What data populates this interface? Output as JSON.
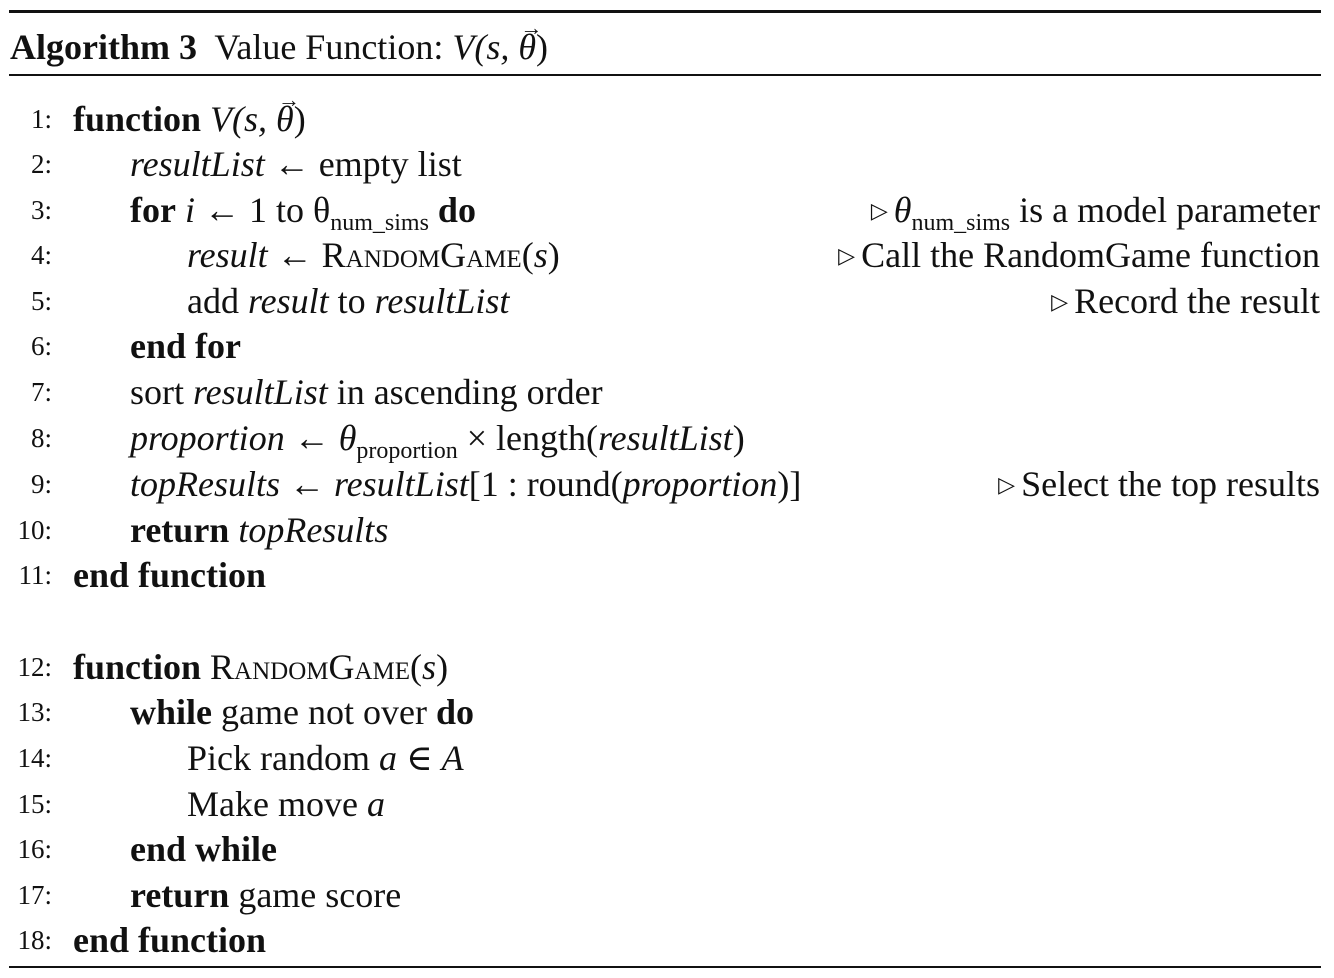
{
  "caption": {
    "label": "Algorithm 3",
    "title": "Value Function:",
    "sig_pre": "V",
    "sig_args": "(s, ",
    "sig_theta": "θ",
    "sig_close": ")"
  },
  "lines": [
    {
      "n": "1:",
      "kw": "function",
      "sig_v": "V",
      "sig_args": "(s, ",
      "sig_theta": "θ",
      "sig_close": ")"
    },
    {
      "n": "2:",
      "var": "resultList",
      "arrow": " ← ",
      "rest": "empty list"
    },
    {
      "n": "3:",
      "kw_for": "for",
      "var": " i",
      "arrow": " ← ",
      "mid": "1 to θ",
      "sub": "num_sims",
      "kw_do": " do",
      "comment_pre": "θ",
      "comment_sub": "num_sims",
      "comment_rest": " is a model parameter"
    },
    {
      "n": "4:",
      "var": "result",
      "arrow": " ← ",
      "func": "RandomGame",
      "args_open": "(",
      "arg": "s",
      "args_close": ")",
      "comment": "Call the RandomGame function"
    },
    {
      "n": "5:",
      "w1": "add ",
      "v1": "result",
      "w2": " to ",
      "v2": "resultList",
      "comment": "Record the result"
    },
    {
      "n": "6:",
      "kw": "end for"
    },
    {
      "n": "7:",
      "w1": "sort ",
      "v1": "resultList",
      "w2": " in ascending order"
    },
    {
      "n": "8:",
      "var": "proportion",
      "arrow": " ← ",
      "theta": "θ",
      "sub": "proportion",
      "mid": " × length(",
      "v2": "resultList",
      "close": ")"
    },
    {
      "n": "9:",
      "var": "topResults",
      "arrow": " ← ",
      "v2": "resultList",
      "mid": "[1 : round(",
      "v3": "proportion",
      "close": ")]",
      "comment": "Select the top results"
    },
    {
      "n": "10:",
      "kw": "return",
      "var": " topResults"
    },
    {
      "n": "11:",
      "kw": "end function"
    },
    {
      "n": "12:",
      "kw": "function",
      "func": " RandomGame",
      "args_open": "(",
      "arg": "s",
      "args_close": ")"
    },
    {
      "n": "13:",
      "kw": "while",
      "mid": " game not over ",
      "kw2": "do"
    },
    {
      "n": "14:",
      "w1": "Pick random ",
      "v1": "a",
      "mid": " ∈ ",
      "v2": "A"
    },
    {
      "n": "15:",
      "w1": "Make move ",
      "v1": "a"
    },
    {
      "n": "16:",
      "kw": "end while"
    },
    {
      "n": "17:",
      "kw": "return",
      "rest": " game score"
    },
    {
      "n": "18:",
      "kw": "end function"
    }
  ],
  "comment_marker": "▷"
}
